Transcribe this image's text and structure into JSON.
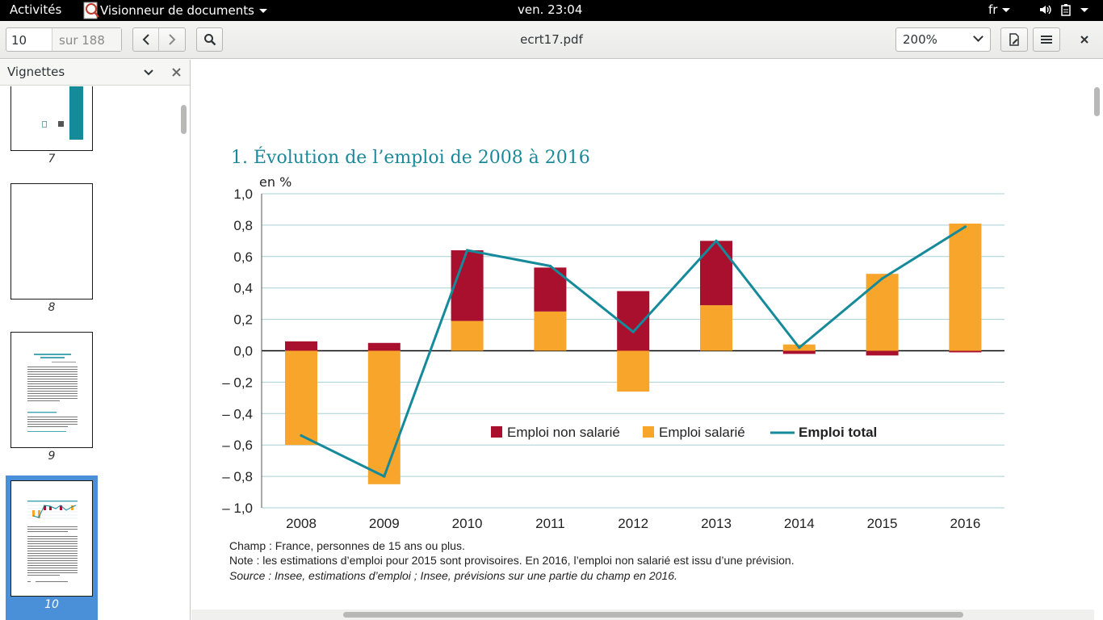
{
  "topbar": {
    "activities": "Activités",
    "app_name": "Visionneur de documents",
    "clock": "ven. 23:04",
    "lang": "fr"
  },
  "toolbar": {
    "page_current": "10",
    "page_total": "sur 188",
    "doc_title": "ecrt17.pdf",
    "zoom": "200%"
  },
  "sidebar": {
    "title": "Vignettes",
    "pages": [
      "7",
      "8",
      "9",
      "10"
    ],
    "selected": "10"
  },
  "chart_data": {
    "type": "bar",
    "title": "1. Évolution de l’emploi de 2008 à 2016",
    "ylabel": "en %",
    "ylim": [
      -1.0,
      1.0
    ],
    "yticks": [
      "1,0",
      "0,8",
      "0,6",
      "0,4",
      "0,2",
      "0,0",
      "– 0,2",
      "– 0,4",
      "– 0,6",
      "– 0,8",
      "– 1,0"
    ],
    "categories": [
      "2008",
      "2009",
      "2010",
      "2011",
      "2012",
      "2013",
      "2014",
      "2015",
      "2016"
    ],
    "series": [
      {
        "name": "Emploi non salarié",
        "values": [
          0.06,
          0.05,
          0.45,
          0.28,
          0.38,
          0.41,
          -0.02,
          -0.03,
          -0.01
        ],
        "color": "#a8102e"
      },
      {
        "name": "Emploi salarié",
        "values": [
          -0.6,
          -0.85,
          0.19,
          0.25,
          -0.26,
          0.29,
          0.04,
          0.49,
          0.81
        ],
        "color": "#f7a62b"
      },
      {
        "name": "Emploi total",
        "values": [
          -0.54,
          -0.8,
          0.64,
          0.54,
          0.12,
          0.7,
          0.02,
          0.46,
          0.79
        ],
        "color": "#158a9a",
        "kind": "line"
      }
    ],
    "legend": "center",
    "grid": true
  },
  "notes": {
    "champ": "Champ : France, personnes de 15 ans ou plus.",
    "note": "Note : les estimations d’emploi pour 2015 sont provisoires. En 2016, l’emploi non salarié est issu d’une prévision.",
    "source": "Source : Insee, estimations d’emploi ; Insee, prévisions sur une partie du champ en 2016."
  }
}
